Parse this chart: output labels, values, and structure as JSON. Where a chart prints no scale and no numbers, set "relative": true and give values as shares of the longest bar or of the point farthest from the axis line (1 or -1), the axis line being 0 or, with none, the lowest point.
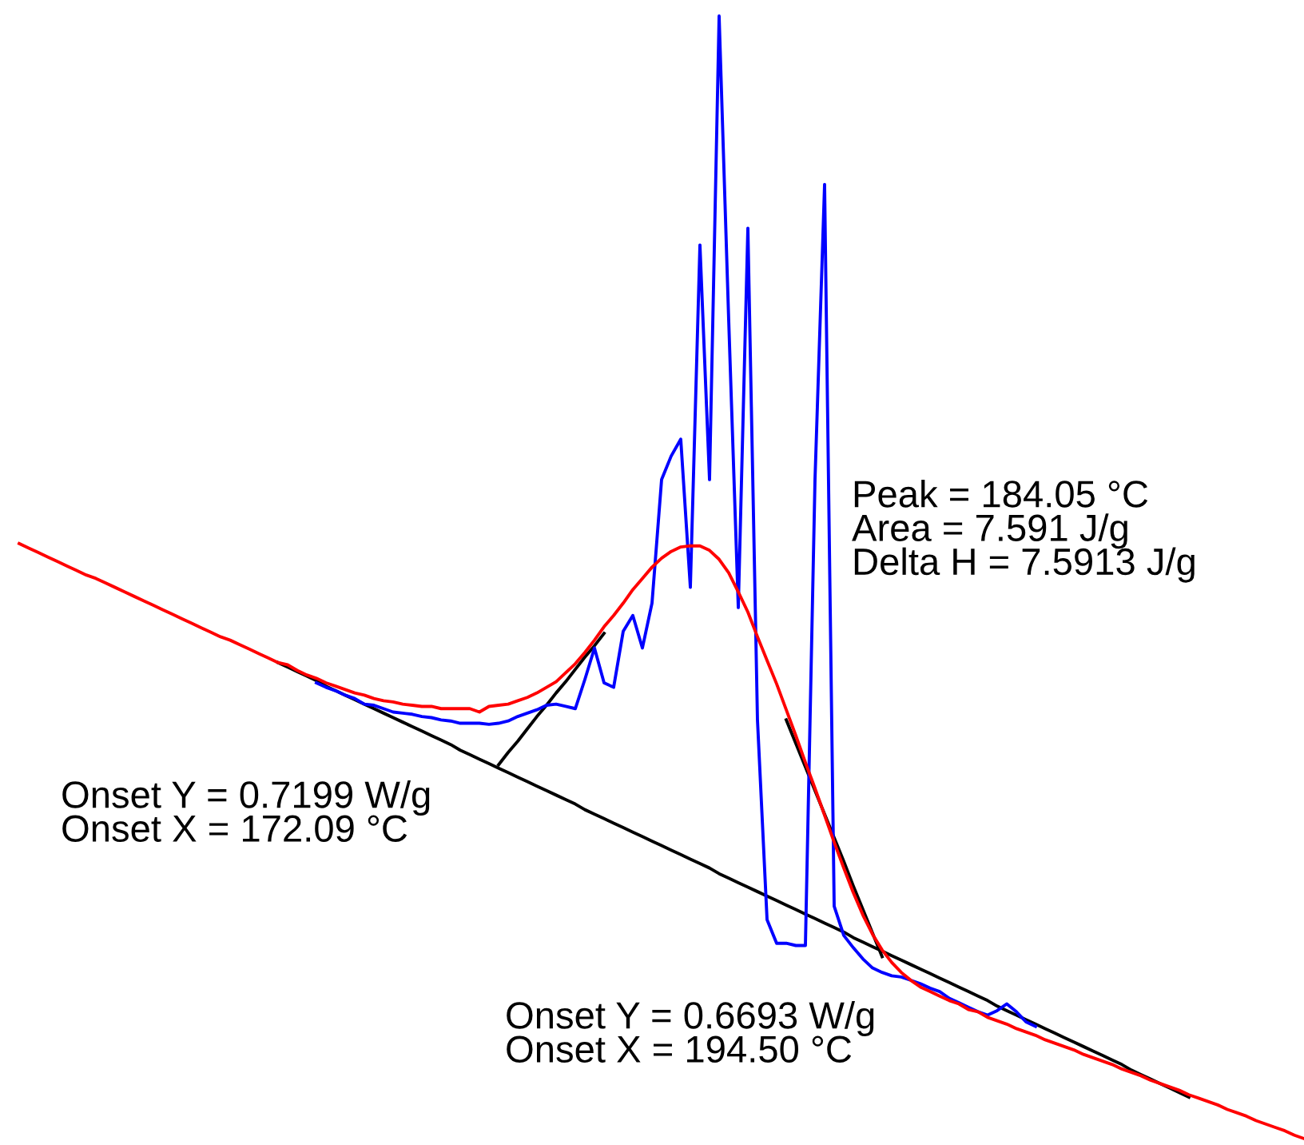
{
  "chart_data": {
    "type": "line",
    "relative": true,
    "marker": "none",
    "line_style": "solid",
    "legend": false,
    "categories": [
      null,
      null,
      null,
      null,
      null,
      null,
      null,
      null,
      null,
      null,
      null,
      null,
      null,
      null,
      null,
      null,
      null,
      null,
      null,
      null,
      null,
      null,
      null,
      null,
      null,
      null,
      null,
      null,
      null,
      null,
      null,
      null,
      null,
      null,
      null,
      null,
      null,
      null,
      null,
      null,
      null,
      null,
      null,
      null,
      null,
      null,
      null,
      null,
      null,
      null,
      null,
      null,
      null,
      null,
      null,
      null,
      null,
      null,
      null,
      null,
      null,
      null,
      null,
      null,
      null,
      null,
      null,
      null,
      null,
      null,
      null,
      null,
      null,
      null,
      null,
      null,
      null,
      null,
      null,
      null,
      null,
      null,
      null,
      null,
      null,
      null,
      null,
      null,
      null,
      null,
      null,
      null,
      null,
      null,
      null,
      null,
      null,
      null,
      null,
      null,
      null,
      null,
      null,
      null,
      null,
      null,
      null,
      null,
      null,
      null,
      null,
      null,
      null,
      null,
      null,
      null,
      null,
      null,
      null,
      null,
      null,
      null,
      null,
      null,
      null,
      null,
      null,
      null,
      null,
      null,
      null,
      null,
      null,
      null,
      null
    ],
    "series": [
      {
        "color": "#000000",
        "values": [
          null,
          null,
          null,
          null,
          null,
          null,
          null,
          null,
          null,
          null,
          null,
          null,
          null,
          null,
          null,
          null,
          null,
          null,
          null,
          null,
          null,
          null,
          null,
          null,
          null,
          null,
          null,
          0.424,
          0.42,
          0.416,
          0.412,
          0.408,
          0.403,
          0.399,
          0.395,
          0.391,
          0.387,
          0.383,
          0.379,
          0.375,
          0.371,
          0.367,
          0.363,
          0.359,
          0.355,
          0.351,
          0.346,
          0.342,
          0.338,
          0.334,
          0.33,
          0.326,
          0.322,
          0.318,
          0.314,
          0.31,
          0.306,
          0.302,
          0.298,
          0.293,
          0.289,
          0.285,
          0.281,
          0.277,
          0.273,
          0.269,
          0.265,
          0.261,
          0.257,
          0.253,
          0.249,
          0.245,
          0.241,
          0.236,
          0.232,
          0.228,
          0.224,
          0.22,
          0.216,
          0.212,
          0.208,
          0.204,
          0.2,
          0.196,
          0.192,
          0.188,
          0.184,
          0.179,
          0.175,
          0.171,
          0.167,
          0.163,
          0.159,
          0.155,
          0.151,
          0.147,
          0.143,
          0.139,
          0.135,
          0.131,
          0.127,
          0.123,
          0.118,
          0.114,
          0.11,
          0.106,
          0.102,
          0.098,
          0.094,
          0.09,
          0.086,
          0.082,
          0.078,
          0.074,
          0.07,
          0.066,
          0.061,
          0.057,
          0.053,
          0.049,
          0.045,
          0.041,
          0.037,
          null,
          null,
          null,
          null,
          null,
          null,
          null,
          null,
          null,
          null,
          null,
          null
        ]
      },
      {
        "color": "#000000",
        "values": [
          null,
          null,
          null,
          null,
          null,
          null,
          null,
          null,
          null,
          null,
          null,
          null,
          null,
          null,
          null,
          null,
          null,
          null,
          null,
          null,
          null,
          null,
          null,
          null,
          null,
          null,
          null,
          null,
          null,
          null,
          null,
          null,
          null,
          null,
          null,
          null,
          null,
          null,
          null,
          null,
          null,
          null,
          null,
          null,
          null,
          null,
          null,
          null,
          null,
          null,
          0.333,
          0.344,
          0.354,
          0.365,
          0.376,
          0.386,
          0.397,
          0.407,
          0.418,
          0.429,
          0.439,
          0.45,
          null,
          null,
          null,
          null,
          null,
          null,
          null,
          null,
          null,
          null,
          null,
          null,
          null,
          null,
          null,
          null,
          null,
          null,
          null,
          null,
          null,
          null,
          null,
          null,
          null,
          null,
          null,
          null,
          null,
          null,
          null,
          null,
          null,
          null,
          null,
          null,
          null,
          null,
          null,
          null,
          null,
          null,
          null,
          null,
          null,
          null,
          null,
          null,
          null,
          null,
          null,
          null,
          null,
          null,
          null,
          null,
          null,
          null,
          null,
          null,
          null,
          null,
          null,
          null,
          null,
          null,
          null,
          null,
          null,
          null,
          null,
          null,
          null
        ]
      },
      {
        "color": "#000000",
        "values": [
          null,
          null,
          null,
          null,
          null,
          null,
          null,
          null,
          null,
          null,
          null,
          null,
          null,
          null,
          null,
          null,
          null,
          null,
          null,
          null,
          null,
          null,
          null,
          null,
          null,
          null,
          null,
          null,
          null,
          null,
          null,
          null,
          null,
          null,
          null,
          null,
          null,
          null,
          null,
          null,
          null,
          null,
          null,
          null,
          null,
          null,
          null,
          null,
          null,
          null,
          null,
          null,
          null,
          null,
          null,
          null,
          null,
          null,
          null,
          null,
          null,
          null,
          null,
          null,
          null,
          null,
          null,
          null,
          null,
          null,
          null,
          null,
          null,
          null,
          null,
          null,
          null,
          null,
          null,
          null,
          0.373,
          0.352,
          0.331,
          0.31,
          0.289,
          0.268,
          0.247,
          0.225,
          0.204,
          0.183,
          0.162,
          null,
          null,
          null,
          null,
          null,
          null,
          null,
          null,
          null,
          null,
          null,
          null,
          null,
          null,
          null,
          null,
          null,
          null,
          null,
          null,
          null,
          null,
          null,
          null,
          null,
          null,
          null,
          null,
          null,
          null,
          null,
          null,
          null,
          null,
          null,
          null,
          null,
          null,
          null,
          null,
          null,
          null,
          null,
          null
        ]
      },
      {
        "color": "#0000ff",
        "values": [
          null,
          null,
          null,
          null,
          null,
          null,
          null,
          null,
          null,
          null,
          null,
          null,
          null,
          null,
          null,
          null,
          null,
          null,
          null,
          null,
          null,
          null,
          null,
          null,
          null,
          null,
          null,
          null,
          null,
          null,
          null,
          0.406,
          0.402,
          0.399,
          0.395,
          0.392,
          0.387,
          0.386,
          0.383,
          0.38,
          0.379,
          0.378,
          0.376,
          0.375,
          0.373,
          0.372,
          0.37,
          0.37,
          0.37,
          0.369,
          0.37,
          0.372,
          0.376,
          0.379,
          0.382,
          0.386,
          0.387,
          0.385,
          0.383,
          0.409,
          0.437,
          0.406,
          0.402,
          0.452,
          0.466,
          0.437,
          0.477,
          0.587,
          0.608,
          0.623,
          0.491,
          0.796,
          0.587,
          1.0,
          0.729,
          0.473,
          0.811,
          0.373,
          0.195,
          0.174,
          0.174,
          0.172,
          0.172,
          0.587,
          0.85,
          0.207,
          0.181,
          0.17,
          0.16,
          0.152,
          0.148,
          0.145,
          0.144,
          0.141,
          0.138,
          0.134,
          0.131,
          0.125,
          0.121,
          0.117,
          0.113,
          0.11,
          0.114,
          0.12,
          0.113,
          0.104,
          0.1,
          null,
          null,
          null,
          null,
          null,
          null,
          null,
          null,
          null,
          null,
          null,
          null,
          null,
          null,
          null,
          null,
          null,
          null,
          null,
          null,
          null,
          null,
          null,
          null,
          null,
          null,
          null,
          null
        ]
      },
      {
        "color": "#ff0000",
        "values": [
          0.53,
          0.526,
          0.522,
          0.518,
          0.514,
          0.51,
          0.506,
          0.502,
          0.499,
          0.495,
          0.491,
          0.487,
          0.483,
          0.479,
          0.475,
          0.471,
          0.467,
          0.463,
          0.459,
          0.455,
          0.451,
          0.447,
          0.444,
          0.44,
          0.436,
          0.432,
          0.428,
          0.424,
          0.422,
          0.417,
          0.413,
          0.41,
          0.406,
          0.403,
          0.4,
          0.397,
          0.395,
          0.392,
          0.39,
          0.389,
          0.387,
          0.386,
          0.385,
          0.385,
          0.383,
          0.383,
          0.383,
          0.383,
          0.38,
          0.385,
          0.386,
          0.387,
          0.39,
          0.393,
          0.397,
          0.402,
          0.407,
          0.415,
          0.423,
          0.433,
          0.444,
          0.456,
          0.466,
          0.477,
          0.489,
          0.499,
          0.509,
          0.517,
          0.523,
          0.527,
          0.528,
          0.528,
          0.524,
          0.516,
          0.504,
          0.487,
          0.469,
          0.447,
          0.426,
          0.405,
          0.382,
          0.359,
          0.335,
          0.312,
          0.288,
          0.264,
          0.241,
          0.219,
          0.199,
          0.182,
          0.168,
          0.157,
          0.148,
          0.141,
          0.135,
          0.131,
          0.127,
          0.123,
          0.12,
          0.115,
          0.113,
          0.108,
          0.105,
          0.102,
          0.098,
          0.095,
          0.092,
          0.088,
          0.085,
          0.082,
          0.079,
          0.075,
          0.072,
          0.069,
          0.066,
          0.062,
          0.059,
          0.056,
          0.052,
          0.049,
          0.046,
          0.043,
          0.039,
          0.036,
          0.033,
          0.03,
          0.026,
          0.023,
          0.02,
          0.016,
          0.013,
          0.01,
          0.007,
          0.003,
          0.0
        ]
      }
    ],
    "annotations": [
      "Peak = 184.05 °C\nArea = 7.591 J/g\nDelta H = 7.5913 J/g",
      "Onset Y = 0.7199 W/g\nOnset X = 172.09 °C",
      "Onset Y = 0.6693 W/g\nOnset X = 194.50 °C"
    ]
  }
}
